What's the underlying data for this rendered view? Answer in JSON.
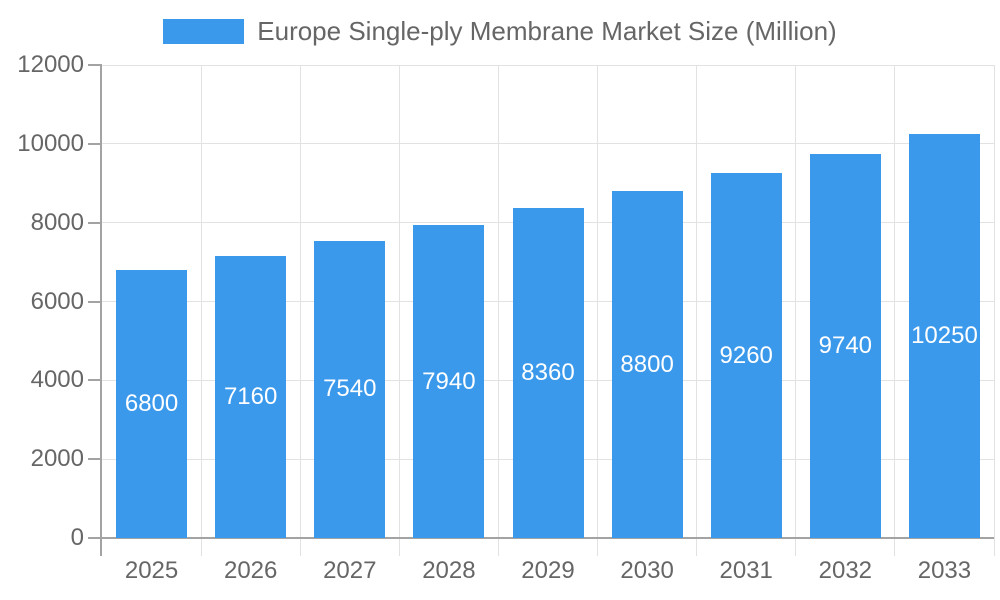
{
  "chart_data": {
    "type": "bar",
    "title": "Europe Single-ply Membrane Market Size (Million)",
    "legend_position": "top",
    "categories": [
      "2025",
      "2026",
      "2027",
      "2028",
      "2029",
      "2030",
      "2031",
      "2032",
      "2033"
    ],
    "values": [
      6800,
      7160,
      7540,
      7940,
      8360,
      8800,
      9260,
      9740,
      10250
    ],
    "value_labels": [
      "6800",
      "7160",
      "7540",
      "7940",
      "8360",
      "8800",
      "9260",
      "9740",
      "10250"
    ],
    "ytick_labels": [
      "0",
      "2000",
      "4000",
      "6000",
      "8000",
      "10000",
      "12000"
    ],
    "ylim": [
      0,
      12000
    ],
    "ytick_step": 2000,
    "grid": true,
    "xlabel": "",
    "ylabel": "",
    "colors": {
      "bar": "#3B99EC",
      "value_label": "#FFFFFF",
      "axis_text": "#666666",
      "grid_line": "#E2E2E2",
      "axis_line": "#A3A3A3",
      "background": "#FFFFFF"
    }
  }
}
